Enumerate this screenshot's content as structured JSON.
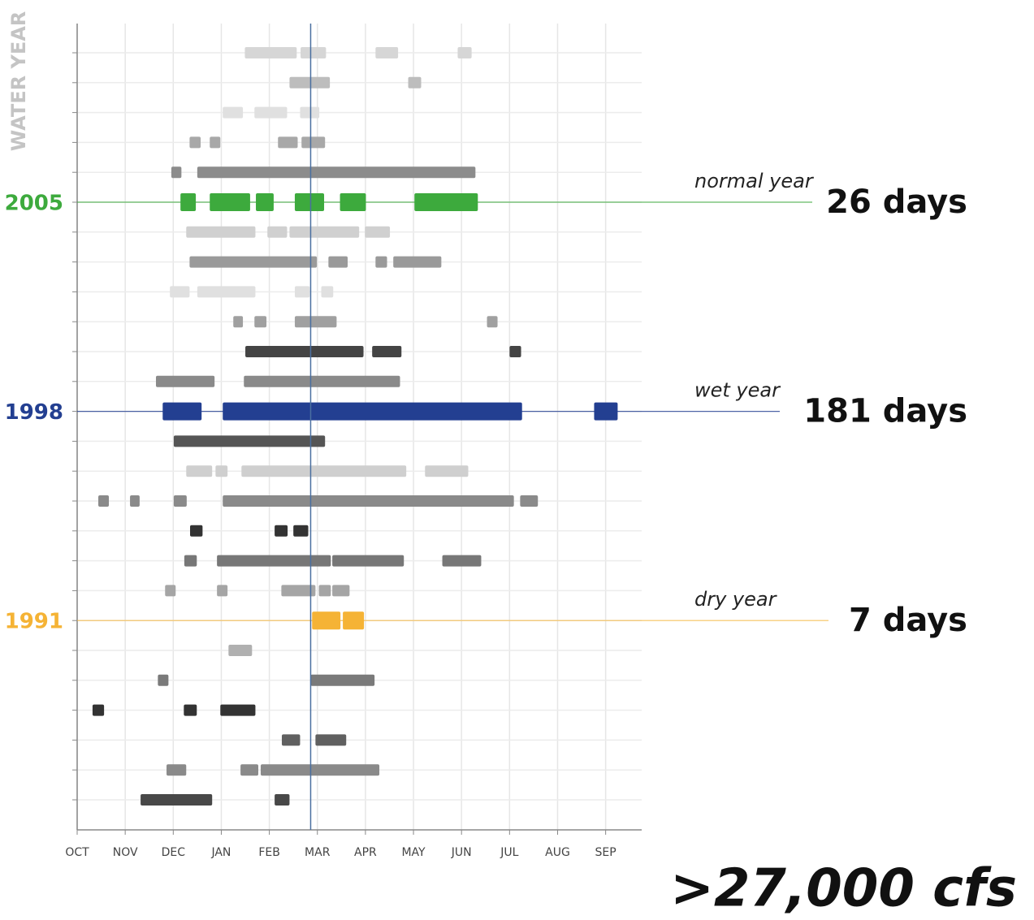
{
  "chart_data": {
    "type": "timeline",
    "y_title": "WATER YEAR",
    "footer": ">27,000 cfs",
    "xlim": [
      0,
      11.75
    ],
    "xticks": [
      {
        "value": 0,
        "label": "OCT"
      },
      {
        "value": 1,
        "label": "NOV"
      },
      {
        "value": 2,
        "label": "DEC"
      },
      {
        "value": 3,
        "label": "JAN"
      },
      {
        "value": 4,
        "label": "FEB"
      },
      {
        "value": 5,
        "label": "MAR"
      },
      {
        "value": 6,
        "label": "APR"
      },
      {
        "value": 7,
        "label": "MAY"
      },
      {
        "value": 8,
        "label": "JUN"
      },
      {
        "value": 9,
        "label": "JUL"
      },
      {
        "value": 10,
        "label": "AUG"
      },
      {
        "value": 11,
        "label": "SEP"
      }
    ],
    "grid": true,
    "reference_x": 4.86,
    "reference_color": "#4a6fa0",
    "rows": [
      {
        "label": null,
        "color": "#d6d6d6",
        "segments": [
          [
            3.49,
            4.57
          ],
          [
            4.65,
            5.18
          ],
          [
            6.21,
            6.68
          ],
          [
            7.92,
            8.21
          ]
        ]
      },
      {
        "label": null,
        "color": "#bdbdbd",
        "segments": [
          [
            4.42,
            5.26
          ],
          [
            6.89,
            7.16
          ]
        ]
      },
      {
        "label": null,
        "color": "#e0e0e0",
        "segments": [
          [
            3.03,
            3.45
          ],
          [
            3.69,
            4.37
          ],
          [
            4.64,
            5.04
          ]
        ]
      },
      {
        "label": null,
        "color": "#a8a8a8",
        "segments": [
          [
            2.34,
            2.57
          ],
          [
            2.76,
            2.98
          ],
          [
            4.18,
            4.59
          ],
          [
            4.67,
            5.16
          ]
        ]
      },
      {
        "label": null,
        "color": "#8c8c8c",
        "segments": [
          [
            1.96,
            2.17
          ],
          [
            2.5,
            8.29
          ]
        ]
      },
      {
        "label": "2005",
        "color": "#3daa3d",
        "highlight": true,
        "note": "normal year",
        "days": "26 days",
        "segments": [
          [
            2.15,
            2.47
          ],
          [
            2.76,
            3.6
          ],
          [
            3.72,
            4.09
          ],
          [
            4.53,
            5.14
          ],
          [
            5.47,
            6.01
          ],
          [
            7.02,
            8.34
          ]
        ]
      },
      {
        "label": null,
        "color": "#d0d0d0",
        "segments": [
          [
            2.27,
            3.71
          ],
          [
            3.96,
            4.37
          ],
          [
            4.42,
            5.87
          ],
          [
            5.99,
            6.51
          ]
        ]
      },
      {
        "label": null,
        "color": "#9a9a9a",
        "segments": [
          [
            2.34,
            4.99
          ],
          [
            5.23,
            5.63
          ],
          [
            6.21,
            6.45
          ],
          [
            6.58,
            7.58
          ]
        ]
      },
      {
        "label": null,
        "color": "#e0e0e0",
        "segments": [
          [
            1.93,
            2.34
          ],
          [
            2.5,
            3.71
          ],
          [
            4.53,
            4.84
          ],
          [
            5.08,
            5.33
          ]
        ]
      },
      {
        "label": null,
        "color": "#a0a0a0",
        "segments": [
          [
            3.25,
            3.45
          ],
          [
            3.69,
            3.94
          ],
          [
            4.53,
            5.4
          ],
          [
            8.53,
            8.75
          ]
        ]
      },
      {
        "label": null,
        "color": "#444444",
        "segments": [
          [
            3.5,
            5.96
          ],
          [
            6.14,
            6.75
          ],
          [
            9.0,
            9.24
          ]
        ]
      },
      {
        "label": null,
        "color": "#8a8a8a",
        "segments": [
          [
            1.64,
            2.86
          ],
          [
            3.47,
            6.72
          ]
        ]
      },
      {
        "label": "1998",
        "color": "#233f91",
        "highlight": true,
        "note": "wet year",
        "days": "181 days",
        "segments": [
          [
            1.78,
            2.59
          ],
          [
            3.03,
            9.26
          ],
          [
            10.76,
            11.25
          ]
        ]
      },
      {
        "label": null,
        "color": "#555555",
        "segments": [
          [
            2.01,
            5.16
          ]
        ]
      },
      {
        "label": null,
        "color": "#cfcfcf",
        "segments": [
          [
            2.27,
            2.81
          ],
          [
            2.88,
            3.13
          ],
          [
            3.42,
            6.85
          ],
          [
            7.24,
            8.14
          ]
        ]
      },
      {
        "label": null,
        "color": "#8a8a8a",
        "segments": [
          [
            0.44,
            0.66
          ],
          [
            1.1,
            1.3
          ],
          [
            2.01,
            2.28
          ],
          [
            3.03,
            9.09
          ],
          [
            9.22,
            9.59
          ]
        ]
      },
      {
        "label": null,
        "color": "#333333",
        "segments": [
          [
            2.35,
            2.61
          ],
          [
            4.11,
            4.38
          ],
          [
            4.5,
            4.81
          ]
        ]
      },
      {
        "label": null,
        "color": "#777777",
        "segments": [
          [
            2.23,
            2.49
          ],
          [
            2.91,
            5.28
          ],
          [
            5.31,
            6.8
          ],
          [
            7.6,
            8.41
          ]
        ]
      },
      {
        "label": null,
        "color": "#a5a5a5",
        "segments": [
          [
            1.83,
            2.05
          ],
          [
            2.91,
            3.13
          ],
          [
            4.25,
            4.96
          ],
          [
            5.03,
            5.28
          ],
          [
            5.31,
            5.67
          ]
        ]
      },
      {
        "label": "1991",
        "color": "#f5b335",
        "highlight": true,
        "note": "dry year",
        "days": "7 days",
        "segments": [
          [
            4.89,
            5.48
          ],
          [
            5.53,
            5.97
          ]
        ]
      },
      {
        "label": null,
        "color": "#b0b0b0",
        "segments": [
          [
            3.15,
            3.64
          ]
        ]
      },
      {
        "label": null,
        "color": "#7a7a7a",
        "segments": [
          [
            1.68,
            1.9
          ],
          [
            4.86,
            6.19
          ]
        ]
      },
      {
        "label": null,
        "color": "#333333",
        "segments": [
          [
            0.32,
            0.56
          ],
          [
            2.22,
            2.49
          ],
          [
            2.98,
            3.71
          ]
        ]
      },
      {
        "label": null,
        "color": "#606060",
        "segments": [
          [
            4.26,
            4.64
          ],
          [
            4.96,
            5.6
          ]
        ]
      },
      {
        "label": null,
        "color": "#8a8a8a",
        "segments": [
          [
            1.86,
            2.27
          ],
          [
            3.4,
            3.77
          ],
          [
            3.82,
            6.29
          ]
        ]
      },
      {
        "label": null,
        "color": "#484848",
        "segments": [
          [
            1.32,
            2.81
          ],
          [
            4.11,
            4.42
          ]
        ]
      }
    ]
  }
}
